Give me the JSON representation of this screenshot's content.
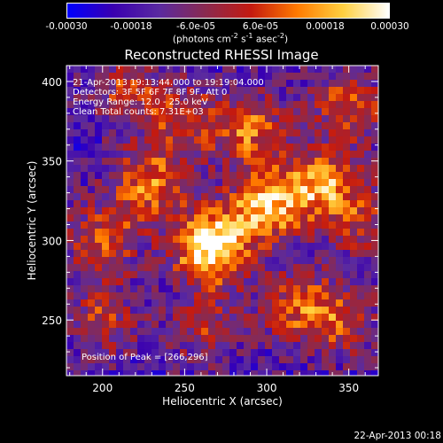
{
  "colorbar": {
    "ticks": [
      "-0.00030",
      "-0.00018",
      "-6.0e-05",
      "6.0e-05",
      "0.00018",
      "0.00030"
    ],
    "unit_html": "(photons cm<sup>-2</sup> s<sup>-1</sup> asec<sup>-2</sup>)",
    "range": [
      -0.0003,
      0.0003
    ],
    "colors": [
      "#0000ff",
      "#3a00b0",
      "#5a2aa0",
      "#8a2a50",
      "#c41a10",
      "#ff7a00",
      "#ffd040",
      "#ffffff"
    ]
  },
  "chart_data": {
    "type": "heatmap",
    "title": "Reconstructed RHESSI Image",
    "xlabel": "Heliocentric X (arcsec)",
    "ylabel": "Heliocentric Y (arcsec)",
    "xlim": [
      178,
      368
    ],
    "ylim": [
      215,
      410
    ],
    "xticks": [
      200,
      250,
      300,
      350
    ],
    "yticks": [
      250,
      300,
      350,
      400
    ],
    "info_lines": [
      "21-Apr-2013 19:13:44.000 to 19:19:04.000",
      "Detectors: 3F 5F 6F 7F 8F 9F, Att 0",
      "Energy Range: 12.0 - 25.0 keV",
      "Clean     Total counts: 7.31E+03"
    ],
    "peak_label": "Position of Peak = [266,296]",
    "peak": [
      266,
      296
    ],
    "sources": [
      {
        "x": 266,
        "y": 296,
        "amp": 1.0
      },
      {
        "x": 300,
        "y": 322,
        "amp": 0.75
      },
      {
        "x": 335,
        "y": 335,
        "amp": 0.7
      },
      {
        "x": 228,
        "y": 335,
        "amp": 0.6
      },
      {
        "x": 200,
        "y": 300,
        "amp": 0.5
      },
      {
        "x": 290,
        "y": 370,
        "amp": 0.55
      },
      {
        "x": 350,
        "y": 385,
        "amp": 0.5
      },
      {
        "x": 250,
        "y": 375,
        "amp": 0.45
      },
      {
        "x": 318,
        "y": 258,
        "amp": 0.45
      },
      {
        "x": 345,
        "y": 250,
        "amp": 0.45
      },
      {
        "x": 200,
        "y": 250,
        "amp": 0.4
      },
      {
        "x": 262,
        "y": 245,
        "amp": 0.35
      },
      {
        "x": 215,
        "y": 395,
        "amp": 0.4
      },
      {
        "x": 360,
        "y": 310,
        "amp": 0.35
      }
    ]
  },
  "footer": {
    "date": "22-Apr-2013 00:18"
  }
}
